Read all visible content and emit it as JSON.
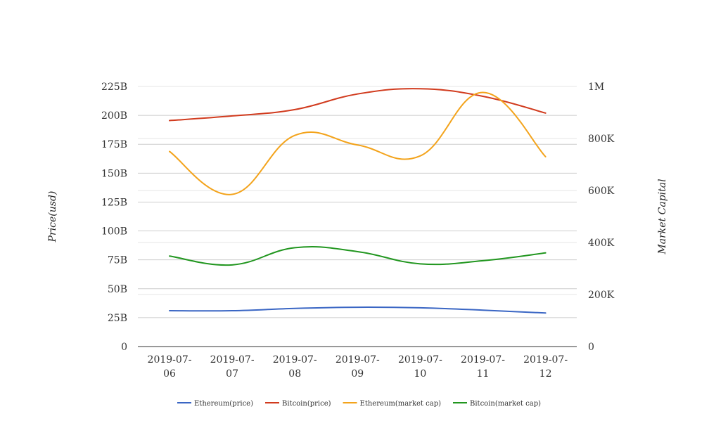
{
  "chart_data": {
    "type": "line",
    "title": "",
    "categories": [
      [
        "2019-07-",
        "06"
      ],
      [
        "2019-07-",
        "07"
      ],
      [
        "2019-07-",
        "08"
      ],
      [
        "2019-07-",
        "09"
      ],
      [
        "2019-07-",
        "10"
      ],
      [
        "2019-07-",
        "11"
      ],
      [
        "2019-07-",
        "12"
      ]
    ],
    "left_axis": {
      "label": "Price(usd)",
      "ylim": [
        0,
        225
      ],
      "unit": "B",
      "ticks": [
        "0",
        "25B",
        "50B",
        "75B",
        "100B",
        "125B",
        "150B",
        "175B",
        "200B",
        "225B"
      ]
    },
    "right_axis": {
      "label": "Market Capital",
      "ylim": [
        0,
        1000
      ],
      "unit": "K",
      "ticks": [
        "0",
        "200K",
        "400K",
        "600K",
        "800K",
        "1M"
      ]
    },
    "series": [
      {
        "name": "Ethereum(price)",
        "axis": "left",
        "color": "#3a66c4",
        "values": [
          31,
          31,
          33,
          34,
          33.5,
          31.5,
          29
        ]
      },
      {
        "name": "Bitcoin(price)",
        "axis": "left",
        "color": "#d13b1e",
        "values": [
          195.5,
          199.5,
          205,
          218.5,
          223,
          216.5,
          202
        ]
      },
      {
        "name": "Ethereum(market cap)",
        "axis": "right",
        "color": "#f3a31b",
        "values": [
          750,
          585,
          812,
          775,
          733,
          977,
          730
        ]
      },
      {
        "name": "Bitcoin(market cap)",
        "axis": "right",
        "color": "#21961f",
        "values": [
          348,
          314,
          380,
          365,
          318,
          330,
          360
        ]
      }
    ],
    "grid": true,
    "legend": "bottom"
  }
}
